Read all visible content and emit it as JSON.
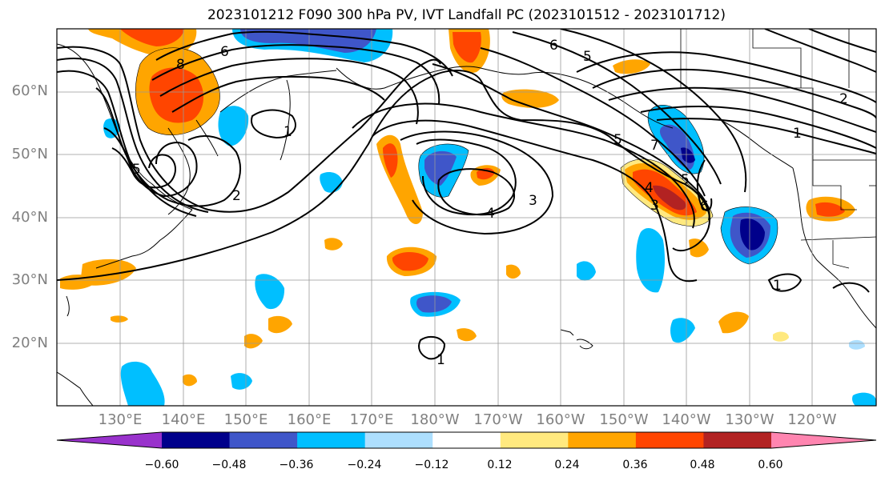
{
  "title": "2023101212 F090 300 hPa PV, IVT Landfall PC (2023101512 - 2023101712)",
  "lat_labels": [
    "60°N",
    "50°N",
    "40°N",
    "30°N",
    "20°N"
  ],
  "lon_labels": [
    "130°E",
    "140°E",
    "150°E",
    "160°E",
    "170°E",
    "180°W",
    "170°W",
    "160°W",
    "150°W",
    "140°W",
    "130°W",
    "120°W"
  ],
  "contour_labels": [
    "8",
    "6",
    "6",
    "5",
    "5",
    "7",
    "5",
    "4",
    "3",
    "2",
    "1",
    "2",
    "3",
    "4",
    "5",
    "6",
    "1",
    "1",
    "1"
  ],
  "colorbar": {
    "tick_labels": [
      "−0.60",
      "−0.48",
      "−0.36",
      "−0.24",
      "−0.12",
      "0.12",
      "0.24",
      "0.36",
      "0.48",
      "0.60"
    ],
    "colors": [
      "#9932CC",
      "#00008B",
      "#3F56C9",
      "#00BFFF",
      "#ADDFFE",
      "#FFFFFF",
      "#FFE97F",
      "#FFA500",
      "#FF4500",
      "#B22222",
      "#FF85B0"
    ]
  }
}
